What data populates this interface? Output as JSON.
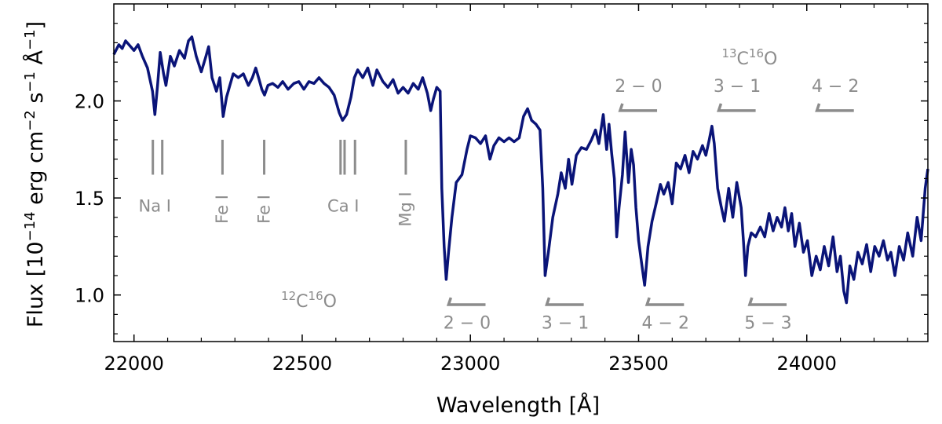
{
  "chart_data": {
    "type": "line",
    "xlabel": "Wavelength [Å]",
    "ylabel_parts": {
      "prefix": "Flux [10",
      "exp1": "−14",
      "unit1": " erg cm",
      "exp2": "−2",
      "unit2": " s",
      "exp3": "−1",
      "unit3": " Å",
      "exp4": "−1",
      "suffix": "]"
    },
    "xlim": [
      21940,
      24360
    ],
    "ylim": [
      0.76,
      2.5
    ],
    "xticks": [
      22000,
      22500,
      23000,
      23500,
      24000
    ],
    "xtick_labels": [
      "22000",
      "22500",
      "23000",
      "23500",
      "24000"
    ],
    "yticks": [
      1.0,
      1.5,
      2.0
    ],
    "ytick_labels": [
      "1.0",
      "1.5",
      "2.0"
    ],
    "line_color": "#0a1478",
    "annotation_color": "#8c8c8c",
    "series": [
      {
        "points": [
          [
            21940,
            2.24
          ],
          [
            21955,
            2.29
          ],
          [
            21965,
            2.27
          ],
          [
            21975,
            2.31
          ],
          [
            21990,
            2.28
          ],
          [
            22000,
            2.26
          ],
          [
            22012,
            2.29
          ],
          [
            22025,
            2.23
          ],
          [
            22040,
            2.17
          ],
          [
            22055,
            2.05
          ],
          [
            22062,
            1.93
          ],
          [
            22070,
            2.08
          ],
          [
            22078,
            2.25
          ],
          [
            22088,
            2.14
          ],
          [
            22095,
            2.08
          ],
          [
            22108,
            2.23
          ],
          [
            22120,
            2.18
          ],
          [
            22135,
            2.26
          ],
          [
            22150,
            2.22
          ],
          [
            22162,
            2.31
          ],
          [
            22172,
            2.33
          ],
          [
            22185,
            2.23
          ],
          [
            22200,
            2.15
          ],
          [
            22212,
            2.22
          ],
          [
            22222,
            2.28
          ],
          [
            22232,
            2.12
          ],
          [
            22245,
            2.05
          ],
          [
            22255,
            2.12
          ],
          [
            22265,
            1.92
          ],
          [
            22275,
            2.02
          ],
          [
            22285,
            2.08
          ],
          [
            22295,
            2.14
          ],
          [
            22310,
            2.12
          ],
          [
            22325,
            2.14
          ],
          [
            22340,
            2.08
          ],
          [
            22352,
            2.12
          ],
          [
            22362,
            2.17
          ],
          [
            22372,
            2.11
          ],
          [
            22380,
            2.06
          ],
          [
            22388,
            2.03
          ],
          [
            22398,
            2.08
          ],
          [
            22412,
            2.09
          ],
          [
            22428,
            2.07
          ],
          [
            22442,
            2.1
          ],
          [
            22458,
            2.06
          ],
          [
            22475,
            2.09
          ],
          [
            22490,
            2.1
          ],
          [
            22505,
            2.06
          ],
          [
            22520,
            2.1
          ],
          [
            22535,
            2.09
          ],
          [
            22550,
            2.12
          ],
          [
            22565,
            2.09
          ],
          [
            22580,
            2.07
          ],
          [
            22595,
            2.03
          ],
          [
            22610,
            1.94
          ],
          [
            22620,
            1.9
          ],
          [
            22632,
            1.93
          ],
          [
            22645,
            2.02
          ],
          [
            22655,
            2.12
          ],
          [
            22665,
            2.16
          ],
          [
            22680,
            2.12
          ],
          [
            22695,
            2.17
          ],
          [
            22710,
            2.08
          ],
          [
            22722,
            2.16
          ],
          [
            22740,
            2.1
          ],
          [
            22755,
            2.07
          ],
          [
            22770,
            2.11
          ],
          [
            22785,
            2.04
          ],
          [
            22800,
            2.07
          ],
          [
            22815,
            2.04
          ],
          [
            22830,
            2.09
          ],
          [
            22845,
            2.06
          ],
          [
            22858,
            2.12
          ],
          [
            22872,
            2.04
          ],
          [
            22882,
            1.95
          ],
          [
            22890,
            2.01
          ],
          [
            22900,
            2.07
          ],
          [
            22910,
            2.05
          ],
          [
            22915,
            1.55
          ],
          [
            22922,
            1.25
          ],
          [
            22928,
            1.08
          ],
          [
            22935,
            1.22
          ],
          [
            22945,
            1.4
          ],
          [
            22958,
            1.58
          ],
          [
            22975,
            1.62
          ],
          [
            22990,
            1.75
          ],
          [
            23000,
            1.82
          ],
          [
            23015,
            1.81
          ],
          [
            23030,
            1.78
          ],
          [
            23045,
            1.82
          ],
          [
            23058,
            1.7
          ],
          [
            23070,
            1.77
          ],
          [
            23085,
            1.81
          ],
          [
            23100,
            1.79
          ],
          [
            23115,
            1.81
          ],
          [
            23130,
            1.79
          ],
          [
            23145,
            1.81
          ],
          [
            23158,
            1.92
          ],
          [
            23170,
            1.96
          ],
          [
            23182,
            1.9
          ],
          [
            23195,
            1.88
          ],
          [
            23207,
            1.85
          ],
          [
            23215,
            1.55
          ],
          [
            23222,
            1.1
          ],
          [
            23232,
            1.22
          ],
          [
            23245,
            1.4
          ],
          [
            23260,
            1.52
          ],
          [
            23270,
            1.63
          ],
          [
            23282,
            1.55
          ],
          [
            23292,
            1.7
          ],
          [
            23302,
            1.57
          ],
          [
            23315,
            1.72
          ],
          [
            23330,
            1.76
          ],
          [
            23345,
            1.75
          ],
          [
            23360,
            1.8
          ],
          [
            23372,
            1.85
          ],
          [
            23382,
            1.78
          ],
          [
            23395,
            1.93
          ],
          [
            23405,
            1.75
          ],
          [
            23412,
            1.88
          ],
          [
            23420,
            1.73
          ],
          [
            23428,
            1.6
          ],
          [
            23435,
            1.3
          ],
          [
            23442,
            1.45
          ],
          [
            23452,
            1.62
          ],
          [
            23460,
            1.84
          ],
          [
            23470,
            1.58
          ],
          [
            23478,
            1.75
          ],
          [
            23485,
            1.67
          ],
          [
            23492,
            1.45
          ],
          [
            23500,
            1.28
          ],
          [
            23510,
            1.15
          ],
          [
            23518,
            1.05
          ],
          [
            23528,
            1.25
          ],
          [
            23540,
            1.38
          ],
          [
            23552,
            1.47
          ],
          [
            23565,
            1.57
          ],
          [
            23575,
            1.52
          ],
          [
            23588,
            1.58
          ],
          [
            23600,
            1.47
          ],
          [
            23612,
            1.68
          ],
          [
            23625,
            1.65
          ],
          [
            23638,
            1.72
          ],
          [
            23650,
            1.63
          ],
          [
            23662,
            1.74
          ],
          [
            23675,
            1.7
          ],
          [
            23690,
            1.77
          ],
          [
            23700,
            1.72
          ],
          [
            23710,
            1.8
          ],
          [
            23718,
            1.87
          ],
          [
            23725,
            1.78
          ],
          [
            23735,
            1.55
          ],
          [
            23745,
            1.46
          ],
          [
            23755,
            1.38
          ],
          [
            23768,
            1.55
          ],
          [
            23780,
            1.4
          ],
          [
            23792,
            1.58
          ],
          [
            23805,
            1.45
          ],
          [
            23812,
            1.27
          ],
          [
            23818,
            1.1
          ],
          [
            23825,
            1.25
          ],
          [
            23835,
            1.32
          ],
          [
            23848,
            1.3
          ],
          [
            23862,
            1.35
          ],
          [
            23875,
            1.3
          ],
          [
            23888,
            1.42
          ],
          [
            23900,
            1.33
          ],
          [
            23912,
            1.4
          ],
          [
            23925,
            1.35
          ],
          [
            23935,
            1.45
          ],
          [
            23945,
            1.33
          ],
          [
            23955,
            1.42
          ],
          [
            23965,
            1.25
          ],
          [
            23978,
            1.37
          ],
          [
            23990,
            1.22
          ],
          [
            24002,
            1.28
          ],
          [
            24015,
            1.1
          ],
          [
            24028,
            1.2
          ],
          [
            24040,
            1.13
          ],
          [
            24052,
            1.25
          ],
          [
            24065,
            1.15
          ],
          [
            24078,
            1.3
          ],
          [
            24090,
            1.12
          ],
          [
            24100,
            1.2
          ],
          [
            24110,
            1.02
          ],
          [
            24118,
            0.96
          ],
          [
            24128,
            1.15
          ],
          [
            24140,
            1.08
          ],
          [
            24152,
            1.22
          ],
          [
            24165,
            1.16
          ],
          [
            24178,
            1.26
          ],
          [
            24190,
            1.12
          ],
          [
            24202,
            1.25
          ],
          [
            24215,
            1.2
          ],
          [
            24228,
            1.28
          ],
          [
            24240,
            1.18
          ],
          [
            24250,
            1.22
          ],
          [
            24262,
            1.1
          ],
          [
            24275,
            1.25
          ],
          [
            24288,
            1.18
          ],
          [
            24300,
            1.32
          ],
          [
            24315,
            1.2
          ],
          [
            24328,
            1.4
          ],
          [
            24340,
            1.28
          ],
          [
            24352,
            1.55
          ],
          [
            24360,
            1.65
          ]
        ]
      }
    ],
    "atomic_lines": [
      {
        "label": "Na I",
        "orientation": "horizontal",
        "lines_x": [
          22056,
          22084
        ],
        "label_x": 22062
      },
      {
        "label": "Fe I",
        "orientation": "vertical",
        "lines_x": [
          22263
        ],
        "label_x": 22260
      },
      {
        "label": "Fe I",
        "orientation": "vertical",
        "lines_x": [
          22387
        ],
        "label_x": 22384
      },
      {
        "label": "Ca I",
        "orientation": "horizontal",
        "lines_x": [
          22614,
          22626,
          22657
        ],
        "label_x": 22622
      },
      {
        "label": "Mg I",
        "orientation": "vertical",
        "lines_x": [
          22808
        ],
        "label_x": 22805
      }
    ],
    "atomic_line_y": [
      1.62,
      1.8
    ],
    "molecule_12co": {
      "label_prefix": "12",
      "label_mid": "C",
      "label_exp": "16",
      "label_end": "O",
      "label_x": 22520,
      "label_y": 0.97,
      "bandheads": [
        {
          "label": "2 − 0",
          "x": 22935
        },
        {
          "label": "3 − 1",
          "x": 23227
        },
        {
          "label": "4 − 2",
          "x": 23525
        },
        {
          "label": "5 − 3",
          "x": 23830
        }
      ],
      "mark_y": 0.95,
      "label_row_y": 0.86
    },
    "molecule_13co": {
      "label_prefix": "13",
      "label_mid": "C",
      "label_exp": "16",
      "label_end": "O",
      "label_x": 23830,
      "label_y": 2.22,
      "bandheads": [
        {
          "label": "2 − 0",
          "x": 23445
        },
        {
          "label": "3 − 1",
          "x": 23738
        },
        {
          "label": "4 − 2",
          "x": 24030
        }
      ],
      "mark_y": 1.95,
      "label_row_y": 2.08
    }
  }
}
